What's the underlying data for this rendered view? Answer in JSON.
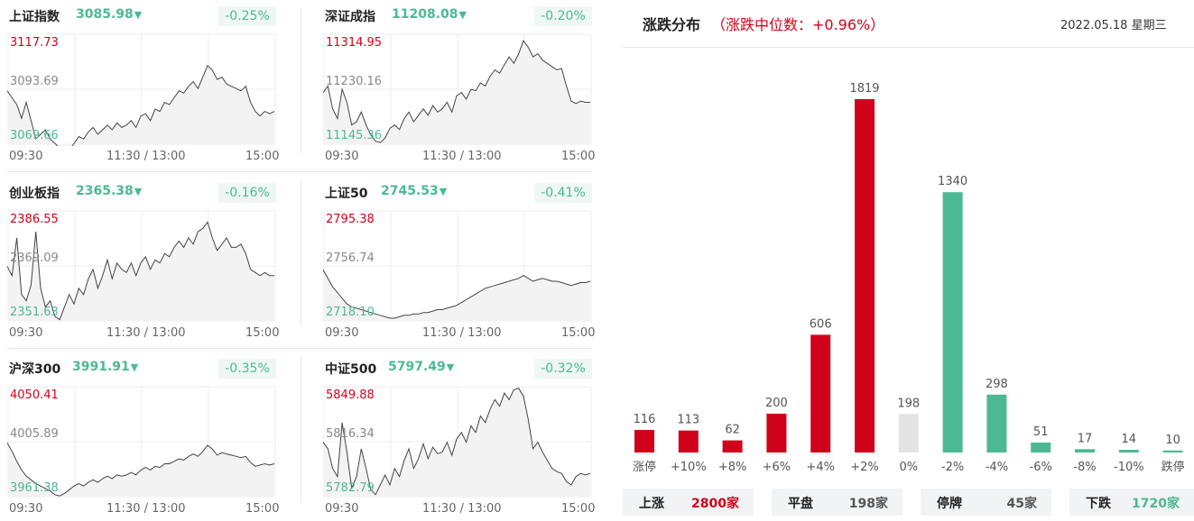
{
  "indices": [
    {
      "name": "上证指数",
      "value": "3085.98",
      "arrow": "▼",
      "change": "-0.25%",
      "high": "3117.73",
      "mid": "3093.69",
      "low": "3069.66",
      "series": [
        3093,
        3090,
        3087,
        3081,
        3088,
        3080,
        3072,
        3074,
        3076,
        3072,
        3070,
        3068,
        3066,
        3067,
        3070,
        3073,
        3072,
        3075,
        3077,
        3074,
        3076,
        3078,
        3076,
        3079,
        3077,
        3078,
        3080,
        3077,
        3082,
        3083,
        3080,
        3085,
        3084,
        3088,
        3087,
        3090,
        3093,
        3092,
        3095,
        3097,
        3094,
        3099,
        3104,
        3102,
        3098,
        3099,
        3096,
        3095,
        3094,
        3093,
        3095,
        3088,
        3084,
        3082,
        3084,
        3083,
        3084
      ]
    },
    {
      "name": "深证成指",
      "value": "11208.08",
      "arrow": "▼",
      "change": "-0.20%",
      "high": "11314.95",
      "mid": "11230.16",
      "low": "11145.36",
      "series": [
        11225,
        11235,
        11200,
        11185,
        11230,
        11210,
        11175,
        11180,
        11195,
        11175,
        11160,
        11150,
        11148,
        11155,
        11170,
        11175,
        11168,
        11185,
        11195,
        11180,
        11190,
        11200,
        11190,
        11205,
        11195,
        11200,
        11210,
        11195,
        11220,
        11225,
        11215,
        11230,
        11228,
        11240,
        11235,
        11250,
        11260,
        11255,
        11268,
        11280,
        11270,
        11285,
        11305,
        11295,
        11280,
        11285,
        11275,
        11270,
        11265,
        11260,
        11262,
        11235,
        11212,
        11208,
        11212,
        11210,
        11210
      ]
    },
    {
      "name": "创业板指",
      "value": "2365.38",
      "arrow": "▼",
      "change": "-0.16%",
      "high": "2386.55",
      "mid": "2369.09",
      "low": "2351.63",
      "series": [
        2369,
        2366,
        2378,
        2360,
        2358,
        2363,
        2380,
        2362,
        2356,
        2358,
        2353,
        2352,
        2356,
        2360,
        2357,
        2362,
        2360,
        2365,
        2368,
        2362,
        2366,
        2371,
        2365,
        2370,
        2368,
        2367,
        2370,
        2366,
        2370,
        2372,
        2368,
        2371,
        2370,
        2373,
        2372,
        2375,
        2377,
        2375,
        2378,
        2376,
        2380,
        2381,
        2383,
        2378,
        2374,
        2376,
        2378,
        2375,
        2375,
        2376,
        2373,
        2368,
        2367,
        2366,
        2367,
        2366,
        2366
      ]
    },
    {
      "name": "上证50",
      "value": "2745.53",
      "arrow": "▼",
      "change": "-0.41%",
      "high": "2795.38",
      "mid": "2756.74",
      "low": "2718.10",
      "series": [
        2754,
        2748,
        2742,
        2738,
        2734,
        2730,
        2728,
        2727,
        2726,
        2725,
        2724,
        2723,
        2722,
        2721,
        2720,
        2720,
        2721,
        2722,
        2722,
        2723,
        2723,
        2724,
        2724,
        2725,
        2726,
        2726,
        2727,
        2728,
        2729,
        2731,
        2733,
        2735,
        2737,
        2739,
        2741,
        2742,
        2743,
        2744,
        2745,
        2746,
        2747,
        2748,
        2750,
        2748,
        2746,
        2747,
        2748,
        2747,
        2746,
        2746,
        2745,
        2744,
        2743,
        2744,
        2745,
        2745,
        2746
      ]
    },
    {
      "name": "沪深300",
      "value": "3991.91",
      "arrow": "▼",
      "change": "-0.35%",
      "high": "4050.41",
      "mid": "4005.89",
      "low": "3961.38",
      "series": [
        4005,
        3998,
        3990,
        3983,
        3978,
        3975,
        3972,
        3970,
        3968,
        3966,
        3963,
        3962,
        3964,
        3967,
        3970,
        3972,
        3970,
        3973,
        3975,
        3973,
        3976,
        3978,
        3976,
        3979,
        3978,
        3979,
        3981,
        3979,
        3983,
        3985,
        3983,
        3986,
        3985,
        3988,
        3988,
        3990,
        3992,
        3991,
        3994,
        3996,
        3994,
        3998,
        4003,
        4000,
        3995,
        3997,
        3996,
        3995,
        3994,
        3993,
        3994,
        3989,
        3986,
        3987,
        3988,
        3987,
        3988
      ]
    },
    {
      "name": "中证500",
      "value": "5797.49",
      "arrow": "▼",
      "change": "-0.32%",
      "high": "5849.88",
      "mid": "5816.34",
      "low": "5782.79",
      "series": [
        5816,
        5812,
        5800,
        5795,
        5828,
        5810,
        5788,
        5795,
        5812,
        5800,
        5787,
        5784,
        5790,
        5796,
        5790,
        5800,
        5795,
        5805,
        5812,
        5800,
        5806,
        5815,
        5806,
        5813,
        5809,
        5810,
        5816,
        5808,
        5818,
        5822,
        5816,
        5826,
        5822,
        5832,
        5828,
        5836,
        5842,
        5838,
        5846,
        5842,
        5848,
        5849,
        5844,
        5830,
        5812,
        5816,
        5810,
        5805,
        5800,
        5798,
        5797,
        5792,
        5790,
        5795,
        5797,
        5796,
        5797
      ]
    }
  ],
  "time_labels": {
    "start": "09:30",
    "mid": "11:30 / 13:00",
    "end": "15:00"
  },
  "header": {
    "title": "涨跌分布",
    "subtitle": "（涨跌中位数：+0.96%）",
    "date": "2022.05.18 星期三"
  },
  "colors": {
    "up": "#d0021b",
    "down": "#4cb992",
    "flat": "#e3e3e3",
    "line": "#444444"
  },
  "chart_data": {
    "type": "bar",
    "categories": [
      "涨停",
      "+10%",
      "+8%",
      "+6%",
      "+4%",
      "+2%",
      "0%",
      "-2%",
      "-4%",
      "-6%",
      "-8%",
      "-10%",
      "跌停"
    ],
    "values": [
      116,
      113,
      62,
      200,
      606,
      1819,
      198,
      1340,
      298,
      51,
      17,
      14,
      10
    ],
    "bar_colors": [
      "up",
      "up",
      "up",
      "up",
      "up",
      "up",
      "flat",
      "down",
      "down",
      "down",
      "down",
      "down",
      "down"
    ],
    "title": "涨跌分布",
    "ylim": [
      0,
      1819
    ]
  },
  "stats": [
    {
      "label": "上涨",
      "value": "2800家",
      "color": "up"
    },
    {
      "label": "平盘",
      "value": "198家",
      "color": "flat"
    },
    {
      "label": "停牌",
      "value": "45家",
      "color": "flat"
    },
    {
      "label": "下跌",
      "value": "1720家",
      "color": "down"
    }
  ]
}
